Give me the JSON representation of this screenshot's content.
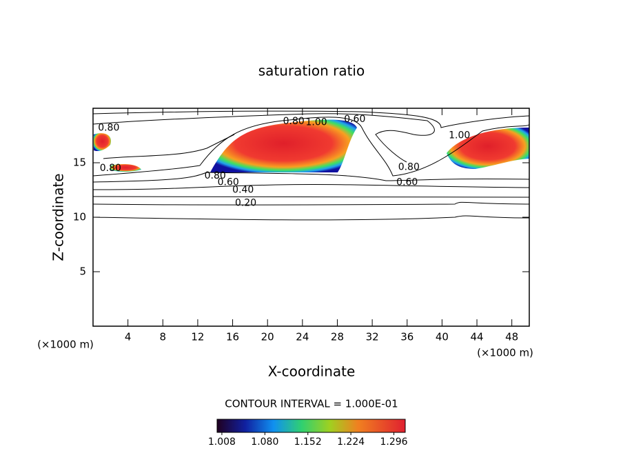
{
  "chart_data": {
    "type": "contour",
    "title": "saturation ratio",
    "x_label": "X-coordinate",
    "y_label": "Z-coordinate",
    "x_unit": "(×1000 m)",
    "y_unit": "(×1000 m)",
    "xlim": [
      0,
      50
    ],
    "ylim": [
      0,
      20
    ],
    "xticks": [
      4,
      8,
      12,
      16,
      20,
      24,
      28,
      32,
      36,
      40,
      44,
      48
    ],
    "yticks": [
      5,
      10,
      15
    ],
    "contour_interval": "CONTOUR INTERVAL = 1.000E-01",
    "contour_labels": [
      {
        "value": 0.2,
        "label": "0.20",
        "x": 17.5,
        "y": 11.3
      },
      {
        "value": 0.4,
        "label": "0.40",
        "x": 17.2,
        "y": 12.5
      },
      {
        "value": 0.6,
        "label": "0.60",
        "x": 15.5,
        "y": 13.2
      },
      {
        "value": 0.8,
        "label": "0.80",
        "x": 14.0,
        "y": 13.8
      },
      {
        "value": 0.8,
        "label": "0.80",
        "x": 2.0,
        "y": 14.5
      },
      {
        "value": 0.8,
        "label": "0.80",
        "x": 1.8,
        "y": 18.2
      },
      {
        "value": 0.8,
        "label": "0.80",
        "x": 23.0,
        "y": 18.8
      },
      {
        "value": 1.0,
        "label": "1.00",
        "x": 25.6,
        "y": 18.7
      },
      {
        "value": 0.6,
        "label": "0.60",
        "x": 30.0,
        "y": 19.0
      },
      {
        "value": 0.8,
        "label": "0.80",
        "x": 36.2,
        "y": 14.6
      },
      {
        "value": 0.6,
        "label": "0.60",
        "x": 36.0,
        "y": 13.2
      },
      {
        "value": 1.0,
        "label": "1.00",
        "x": 42.0,
        "y": 17.5
      }
    ],
    "colorbar_lim": [
      1.0,
      1.315
    ],
    "colorbar_ticks": [
      1.008,
      {
        "value": 1.08,
        "label": "1.080"
      },
      1.152,
      1.224,
      1.296
    ]
  }
}
